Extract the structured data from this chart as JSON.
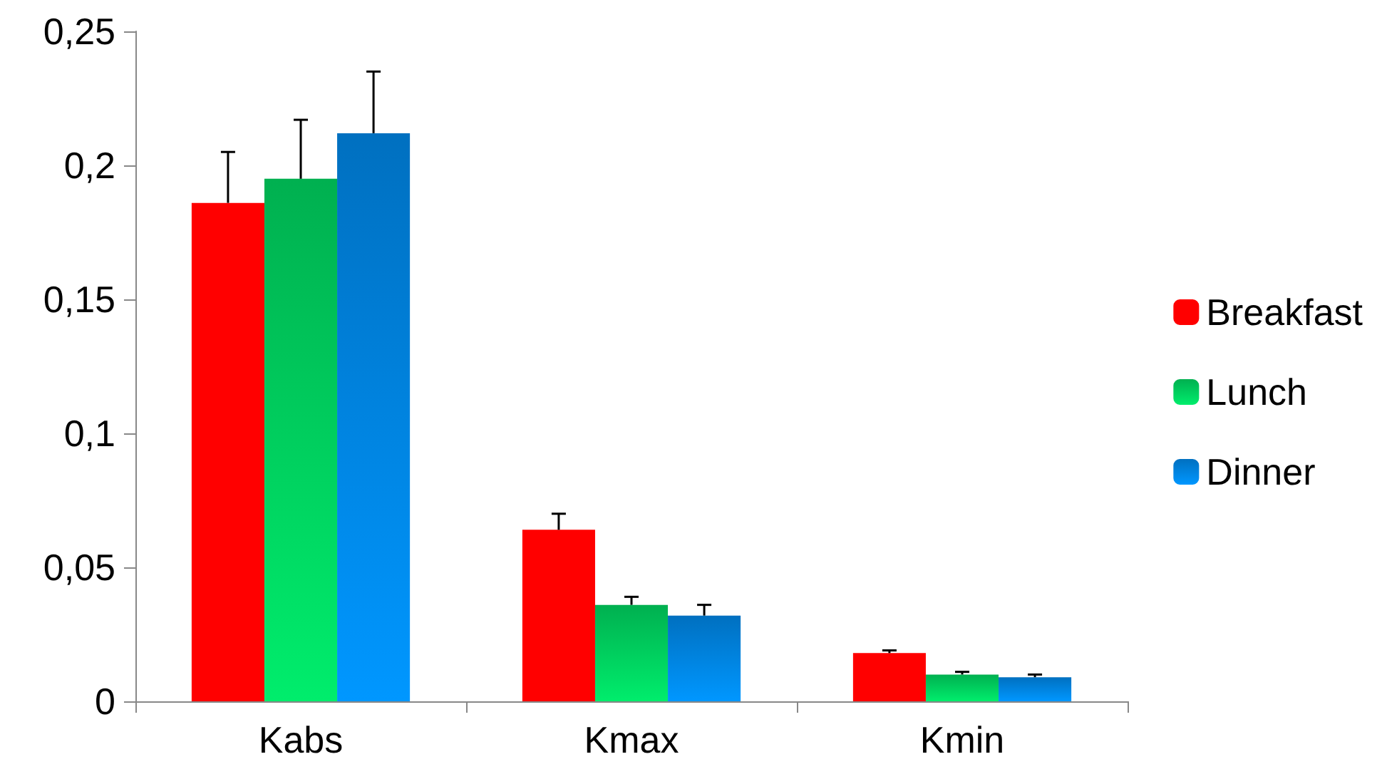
{
  "chart_data": {
    "type": "bar",
    "categories": [
      "Kabs",
      "Kmax",
      "Kmin"
    ],
    "series": [
      {
        "name": "Breakfast",
        "color": "#ff0000",
        "values": [
          0.186,
          0.064,
          0.018
        ],
        "errors": [
          [
            0.186,
            0.205
          ],
          [
            0.064,
            0.07
          ],
          [
            0.018,
            0.019
          ]
        ]
      },
      {
        "name": "Lunch",
        "color": "#00b050",
        "values": [
          0.195,
          0.036,
          0.01
        ],
        "errors": [
          [
            0.195,
            0.217
          ],
          [
            0.036,
            0.039
          ],
          [
            0.01,
            0.011
          ]
        ]
      },
      {
        "name": "Dinner",
        "color": "#0070c0",
        "values": [
          0.212,
          0.032,
          0.009
        ],
        "errors": [
          [
            0.212,
            0.235
          ],
          [
            0.032,
            0.036
          ],
          [
            0.009,
            0.01
          ]
        ]
      }
    ],
    "ylim": [
      0,
      0.25
    ],
    "yticks": [
      {
        "value": 0,
        "label": "0"
      },
      {
        "value": 0.05,
        "label": "0,05"
      },
      {
        "value": 0.1,
        "label": "0,1"
      },
      {
        "value": 0.15,
        "label": "0,15"
      },
      {
        "value": 0.2,
        "label": "0,2"
      },
      {
        "value": 0.25,
        "label": "0,25"
      }
    ],
    "grid": false,
    "legend": "right"
  }
}
